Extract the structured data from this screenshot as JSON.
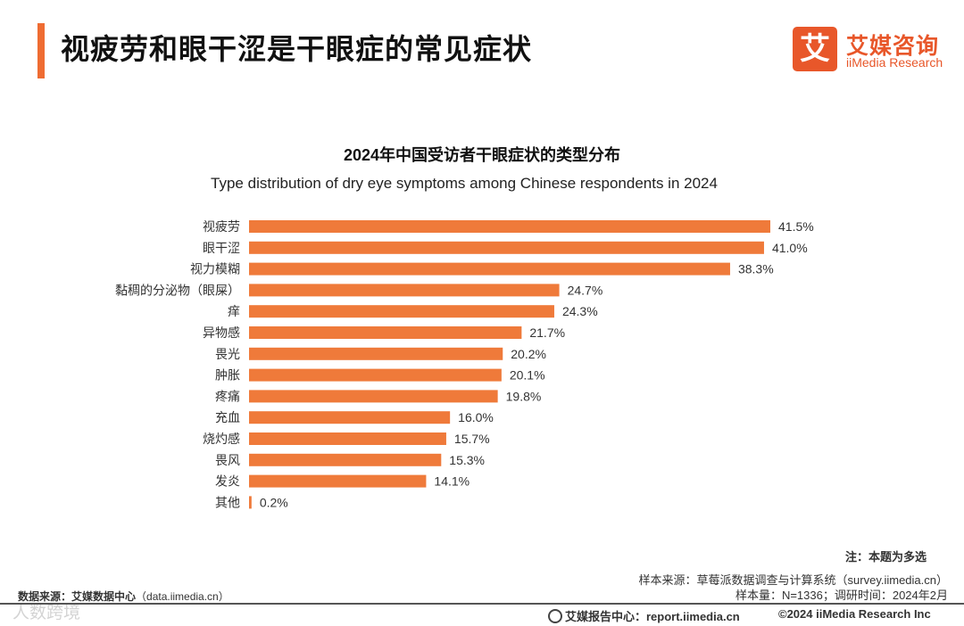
{
  "header": {
    "title": "视疲劳和眼干涩是干眼症的常见症状",
    "logo_mark": "艾",
    "logo_cn": "艾媒咨询",
    "logo_en": "iiMedia Research",
    "accent_color": "#ef6c32"
  },
  "chart_data": {
    "type": "bar",
    "orientation": "horizontal",
    "title": "2024年中国受访者干眼症状的类型分布",
    "subtitle": "Type distribution of dry eye symptoms among Chinese respondents in 2024",
    "categories": [
      "视疲劳",
      "眼干涩",
      "视力模糊",
      "黏稠的分泌物（眼屎）",
      "痒",
      "异物感",
      "畏光",
      "肿胀",
      "疼痛",
      "充血",
      "烧灼感",
      "畏风",
      "发炎",
      "其他"
    ],
    "values": [
      41.5,
      41.0,
      38.3,
      24.7,
      24.3,
      21.7,
      20.2,
      20.1,
      19.8,
      16.0,
      15.7,
      15.3,
      14.1,
      0.2
    ],
    "value_labels": [
      "41.5%",
      "41.0%",
      "38.3%",
      "24.7%",
      "24.3%",
      "21.7%",
      "20.2%",
      "20.1%",
      "19.8%",
      "16.0%",
      "15.7%",
      "15.3%",
      "14.1%",
      "0.2%"
    ],
    "unit": "%",
    "xlim": [
      0,
      41.5
    ],
    "bar_color": "#ef7a3a",
    "grid": false
  },
  "footer": {
    "note": "注：本题为多选",
    "sample_source": "样本来源：草莓派数据调查与计算系统（survey.iimedia.cn）",
    "sample_size": "样本量：N=1336；调研时间：2024年2月",
    "data_source_label": "数据来源：艾媒数据中心",
    "data_source_url": "（data.iimedia.cn）",
    "watermark": "人数跨境",
    "report_center": "艾媒报告中心：report.iimedia.cn",
    "copyright": "©2024  iiMedia Research  Inc"
  }
}
